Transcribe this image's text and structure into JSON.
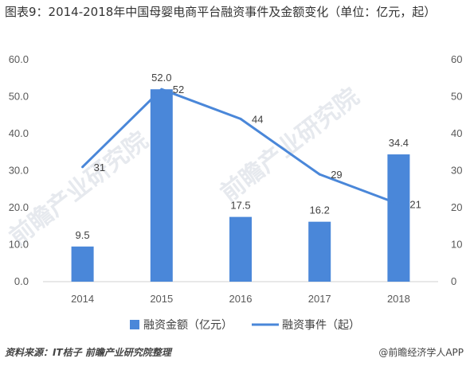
{
  "title": "图表9：2014-2018年中国母婴电商平台融资事件及金额变化（单位：亿元，起）",
  "watermark": "前瞻产业研究院",
  "source": "资料来源：IT桔子 前瞻产业研究院整理",
  "brand": "@前瞻经济学人APP",
  "colors": {
    "bar": "#4a87d9",
    "line": "#4a87d9"
  },
  "chart_data": {
    "type": "bar",
    "categories": [
      "2014",
      "2015",
      "2016",
      "2017",
      "2018"
    ],
    "series": [
      {
        "name": "融资金额（亿元）",
        "type": "bar",
        "axis": "left",
        "values": [
          9.5,
          52.0,
          17.5,
          16.2,
          34.4
        ],
        "labels": [
          "9.5",
          "52.0",
          "17.5",
          "16.2",
          "34.4"
        ]
      },
      {
        "name": "融资事件（起）",
        "type": "line",
        "axis": "right",
        "values": [
          31,
          52,
          44,
          29,
          21
        ],
        "labels": [
          "31",
          "52",
          "44",
          "29",
          "21"
        ]
      }
    ],
    "y_left": {
      "min": 0,
      "max": 60,
      "ticks": [
        "0.0",
        "10.0",
        "20.0",
        "30.0",
        "40.0",
        "50.0",
        "60.0"
      ]
    },
    "y_right": {
      "min": 0,
      "max": 60,
      "ticks": [
        "0",
        "10",
        "20",
        "30",
        "40",
        "50",
        "60"
      ]
    },
    "grid": false,
    "legend": "bottom"
  }
}
